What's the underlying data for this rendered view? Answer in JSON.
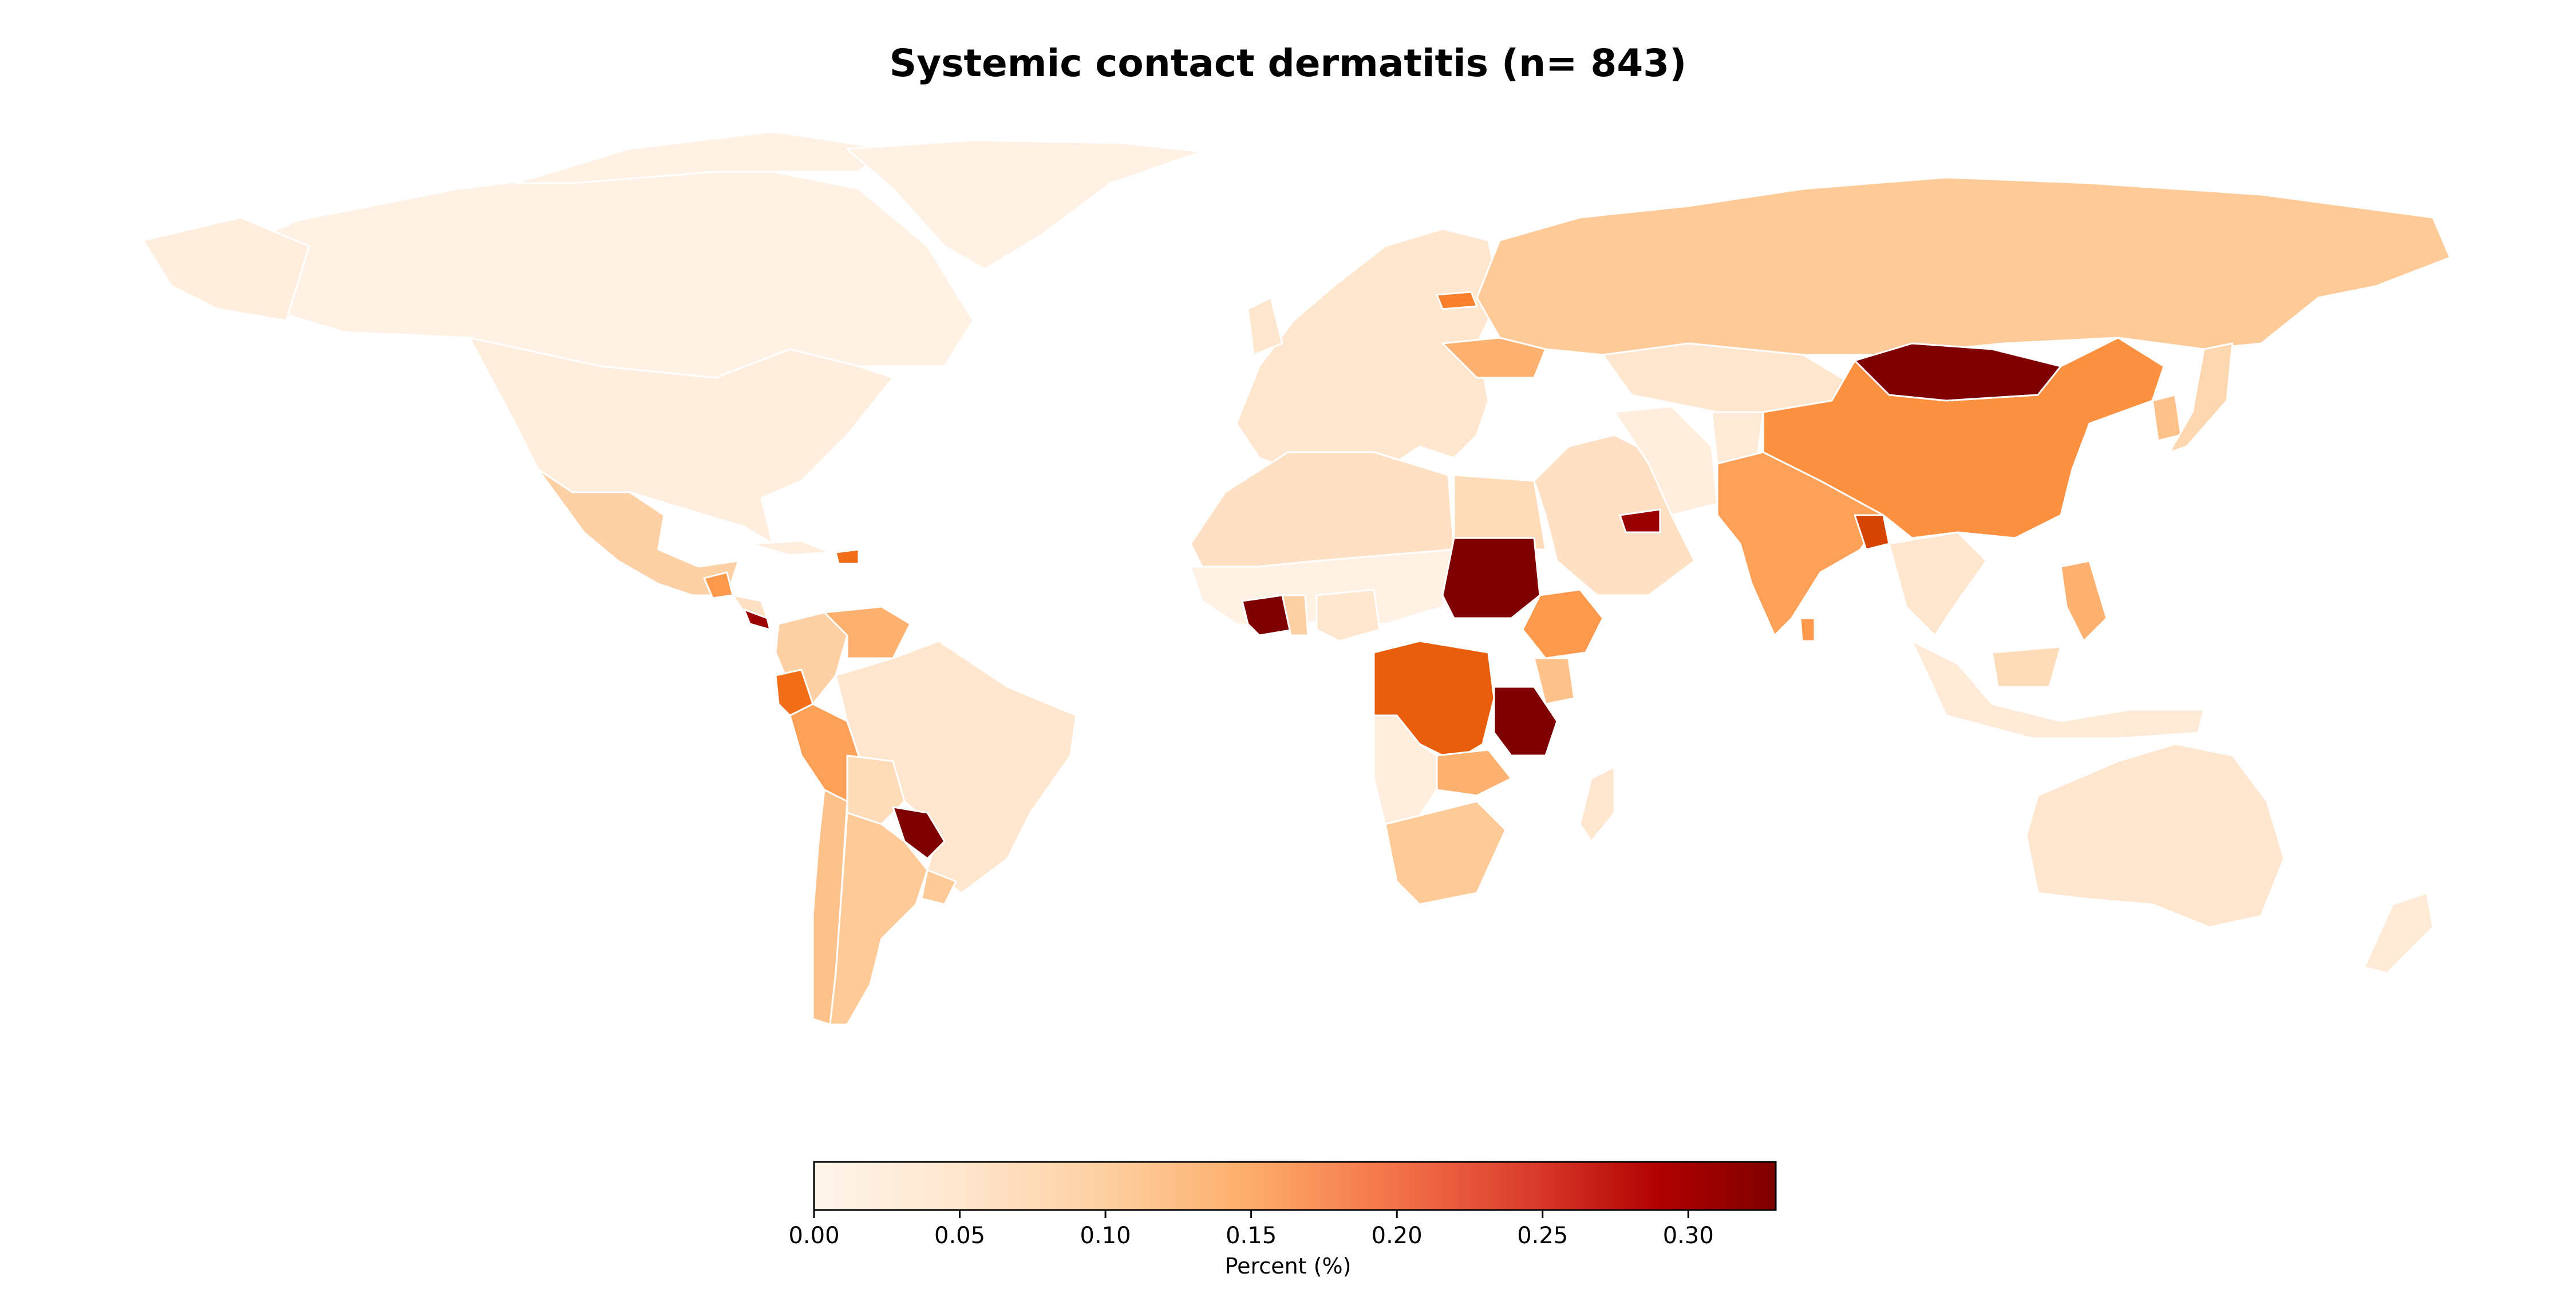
{
  "title": "Systemic contact dermatitis (n= 843)",
  "colorbar": {
    "label": "Percent (%)",
    "min": 0.0,
    "max": 0.33,
    "ticks": [
      "0.00",
      "0.05",
      "0.10",
      "0.15",
      "0.20",
      "0.25",
      "0.30"
    ],
    "tick_values": [
      0.0,
      0.05,
      0.1,
      0.15,
      0.2,
      0.25,
      0.3
    ],
    "colormap": [
      "#fff5eb",
      "#fee6ce",
      "#fdd0a2",
      "#fdae6b",
      "#fd8d3c",
      "#f16913",
      "#d94801",
      "#a50000",
      "#7f0000"
    ]
  },
  "regions": [
    {
      "name": "Canada",
      "value": 0.01
    },
    {
      "name": "Greenland",
      "value": 0.01
    },
    {
      "name": "USA",
      "value": 0.02
    },
    {
      "name": "Mexico",
      "value": 0.08
    },
    {
      "name": "Central America",
      "value": 0.05
    },
    {
      "name": "Costa Rica",
      "value": 0.3
    },
    {
      "name": "Guatemala",
      "value": 0.15
    },
    {
      "name": "Cuba",
      "value": 0.02
    },
    {
      "name": "Dominican Republic",
      "value": 0.2
    },
    {
      "name": "Colombia",
      "value": 0.08
    },
    {
      "name": "Venezuela",
      "value": 0.12
    },
    {
      "name": "Ecuador",
      "value": 0.2
    },
    {
      "name": "Peru",
      "value": 0.14
    },
    {
      "name": "Brazil",
      "value": 0.04
    },
    {
      "name": "Bolivia",
      "value": 0.06
    },
    {
      "name": "Paraguay",
      "value": 0.33
    },
    {
      "name": "Chile",
      "value": 0.1
    },
    {
      "name": "Argentina",
      "value": 0.09
    },
    {
      "name": "Uruguay",
      "value": 0.09
    },
    {
      "name": "Europe",
      "value": 0.04
    },
    {
      "name": "Ukraine",
      "value": 0.12
    },
    {
      "name": "Latvia",
      "value": 0.18
    },
    {
      "name": "Russia",
      "value": 0.09
    },
    {
      "name": "Kazakhstan",
      "value": 0.04
    },
    {
      "name": "North Africa",
      "value": 0.05
    },
    {
      "name": "Egypt",
      "value": 0.06
    },
    {
      "name": "West Africa",
      "value": 0.01
    },
    {
      "name": "Ivory Coast",
      "value": 0.33
    },
    {
      "name": "Ghana",
      "value": 0.08
    },
    {
      "name": "Nigeria",
      "value": 0.04
    },
    {
      "name": "Sudan",
      "value": 0.33
    },
    {
      "name": "Ethiopia",
      "value": 0.15
    },
    {
      "name": "Kenya",
      "value": 0.1
    },
    {
      "name": "DR Congo",
      "value": 0.22
    },
    {
      "name": "Tanzania",
      "value": 0.33
    },
    {
      "name": "Zambia",
      "value": 0.12
    },
    {
      "name": "Southern Africa",
      "value": 0.02
    },
    {
      "name": "South Africa",
      "value": 0.09
    },
    {
      "name": "Madagascar",
      "value": 0.04
    },
    {
      "name": "Middle East",
      "value": 0.05
    },
    {
      "name": "Iran",
      "value": 0.02
    },
    {
      "name": "UAE",
      "value": 0.3
    },
    {
      "name": "Afghanistan",
      "value": 0.03
    },
    {
      "name": "India",
      "value": 0.14
    },
    {
      "name": "Bangladesh",
      "value": 0.25
    },
    {
      "name": "Sri Lanka",
      "value": 0.15
    },
    {
      "name": "Mongolia",
      "value": 0.33
    },
    {
      "name": "China",
      "value": 0.16
    },
    {
      "name": "Japan",
      "value": 0.07
    },
    {
      "name": "Korea",
      "value": 0.1
    },
    {
      "name": "Southeast Asia",
      "value": 0.04
    },
    {
      "name": "Philippines",
      "value": 0.12
    },
    {
      "name": "Malaysia",
      "value": 0.06
    },
    {
      "name": "Indonesia",
      "value": 0.03
    },
    {
      "name": "Australia",
      "value": 0.04
    },
    {
      "name": "New Zealand",
      "value": 0.03
    }
  ]
}
